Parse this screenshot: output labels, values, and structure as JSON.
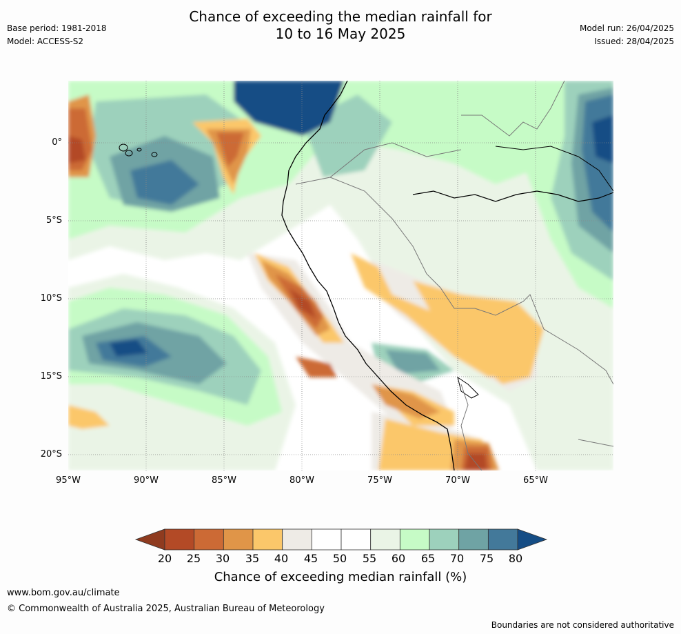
{
  "title": {
    "line1": "Chance of exceeding the median rainfall for",
    "line2": "10 to 16 May 2025"
  },
  "meta": {
    "base_period": "Base period: 1981-2018",
    "model": "Model: ACCESS-S2",
    "model_run": "Model run: 26/04/2025",
    "issued": "Issued: 28/04/2025"
  },
  "axes": {
    "lat_labels": [
      "0°",
      "5°S",
      "10°S",
      "15°S",
      "20°S"
    ],
    "lon_labels": [
      "95°W",
      "90°W",
      "85°W",
      "80°W",
      "75°W",
      "70°W",
      "65°W"
    ]
  },
  "colorbar": {
    "ticks": [
      "20",
      "25",
      "30",
      "35",
      "40",
      "45",
      "50",
      "55",
      "60",
      "65",
      "70",
      "75",
      "80"
    ],
    "label": "Chance of exceeding median rainfall (%)",
    "colors": [
      "#8f3b1f",
      "#b34a26",
      "#cc6a35",
      "#e09548",
      "#fbc76a",
      "#eeebe6",
      "#ffffff",
      "#ffffff",
      "#eaf4e6",
      "#c6fbc6",
      "#9dd1bc",
      "#6fa3a4",
      "#43799a",
      "#154d85"
    ]
  },
  "footer": {
    "website": "www.bom.gov.au/climate",
    "copyright": "© Commonwealth of Australia 2025, Australian Bureau of Meteorology",
    "disclaimer": "Boundaries are not considered authoritative"
  }
}
